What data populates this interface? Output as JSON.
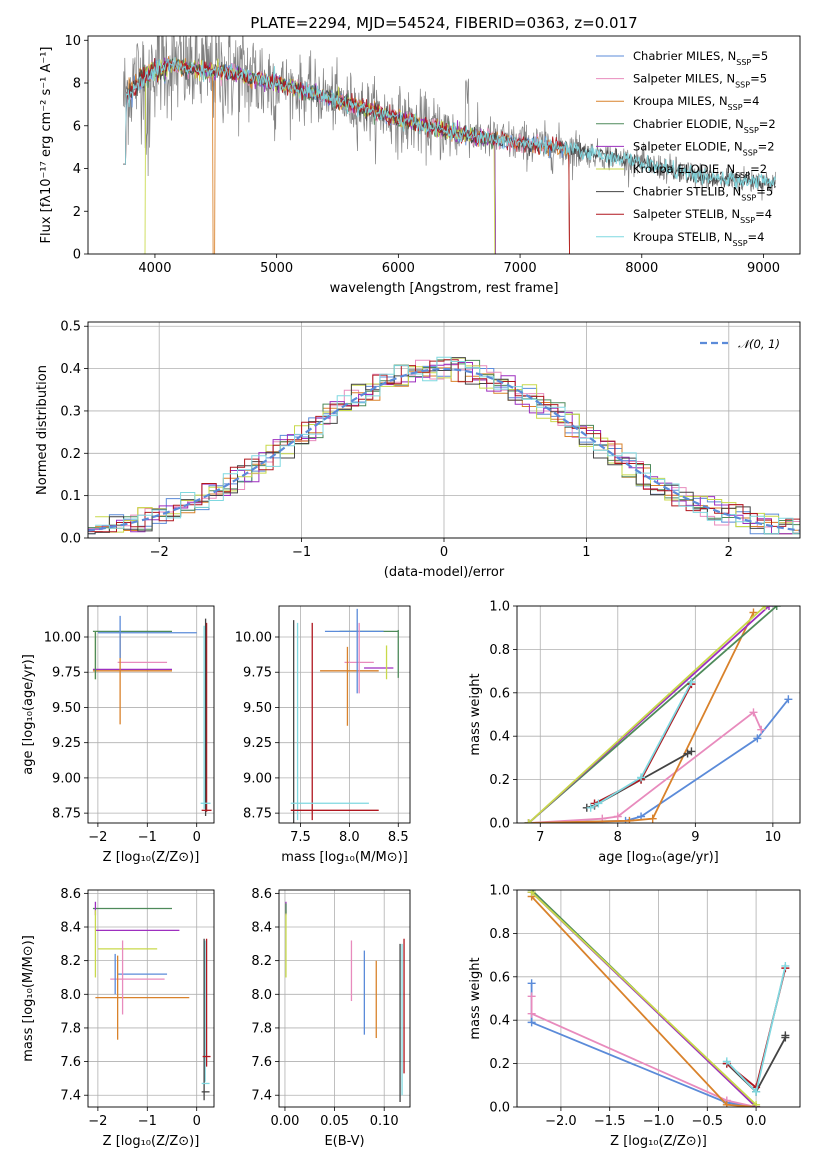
{
  "colors": {
    "Chabrier MILES": "#5b8bd9",
    "Salpeter MILES": "#e88bbd",
    "Kroupa MILES": "#d9822b",
    "Chabrier ELODIE": "#4e8a5a",
    "Salpeter ELODIE": "#9d2fbf",
    "Kroupa ELODIE": "#c8d94a",
    "Chabrier STELIB": "#444444",
    "Salpeter STELIB": "#b0171f",
    "Kroupa STELIB": "#7fd8e0",
    "data": "#808080",
    "gauss": "#5b8bd9"
  },
  "chart_data": [
    {
      "id": "spectrum",
      "type": "line",
      "title": "PLATE=2294, MJD=54524, FIBERID=0363, z=0.017",
      "xlabel": "wavelength [Angstrom, rest frame]",
      "ylabel": "Flux [fλ10⁻¹⁷ erg cm⁻² s⁻¹ A⁻¹]",
      "xlim": [
        3450,
        9300
      ],
      "ylim": [
        0,
        10.2
      ],
      "xticks": [
        4000,
        5000,
        6000,
        7000,
        8000,
        9000
      ],
      "yticks": [
        0,
        2,
        4,
        6,
        8,
        10
      ],
      "grid": false,
      "legend_position": "top-right",
      "continuum": [
        [
          3740,
          7.3
        ],
        [
          3800,
          7.9
        ],
        [
          3900,
          8.5
        ],
        [
          4000,
          8.9
        ],
        [
          4100,
          8.9
        ],
        [
          4200,
          8.75
        ],
        [
          4400,
          8.6
        ],
        [
          4600,
          8.5
        ],
        [
          5000,
          8.0
        ],
        [
          5200,
          7.7
        ],
        [
          5500,
          7.2
        ],
        [
          6000,
          6.3
        ],
        [
          6500,
          5.6
        ],
        [
          7000,
          5.2
        ],
        [
          7400,
          4.9
        ],
        [
          7800,
          4.5
        ],
        [
          8200,
          4.0
        ],
        [
          8600,
          3.5
        ],
        [
          9000,
          3.4
        ],
        [
          9100,
          3.3
        ]
      ],
      "series": [
        {
          "name": "Chabrier MILES",
          "n_ssp": "5",
          "range": [
            3740,
            7410
          ]
        },
        {
          "name": "Salpeter MILES",
          "n_ssp": "5",
          "range": [
            3740,
            7410
          ]
        },
        {
          "name": "Kroupa MILES",
          "n_ssp": "4",
          "range": [
            3740,
            7410
          ]
        },
        {
          "name": "Chabrier ELODIE",
          "n_ssp": "2",
          "range": [
            3900,
            6800
          ]
        },
        {
          "name": "Salpeter ELODIE",
          "n_ssp": "2",
          "range": [
            3900,
            6800
          ]
        },
        {
          "name": "Kroupa ELODIE",
          "n_ssp": "2",
          "range": [
            3900,
            6800
          ]
        },
        {
          "name": "Chabrier STELIB",
          "n_ssp": "5",
          "range": [
            3740,
            9100
          ]
        },
        {
          "name": "Salpeter STELIB",
          "n_ssp": "4",
          "range": [
            3740,
            7410
          ]
        },
        {
          "name": "Kroupa STELIB",
          "n_ssp": "4",
          "range": [
            3740,
            9100
          ]
        }
      ]
    },
    {
      "id": "residuals",
      "type": "line",
      "xlabel": "(data-model)/error",
      "ylabel": "Normed distribution",
      "xlim": [
        -2.5,
        2.5
      ],
      "ylim": [
        0,
        0.51
      ],
      "xticks": [
        -2,
        -1,
        0,
        1,
        2
      ],
      "yticks": [
        0.0,
        0.1,
        0.2,
        0.3,
        0.4,
        0.5
      ],
      "grid": true,
      "legend_position": "top-right",
      "legend_label": "𝒩(0, 1)",
      "bin_width": 0.1
    },
    {
      "id": "age-vs-Z",
      "type": "scatter",
      "xlabel": "Z [log₁₀(Z/Z⊙)]",
      "ylabel": "age  [log₁₀(age/yr)]",
      "xlim": [
        -2.2,
        0.35
      ],
      "ylim": [
        8.68,
        10.22
      ],
      "xticks": [
        -2,
        -1,
        0
      ],
      "yticks": [
        8.75,
        9.0,
        9.25,
        9.5,
        9.75,
        10.0
      ],
      "grid": true,
      "errorbars": [
        {
          "series": "Chabrier MILES",
          "x": -1.0,
          "xerr": 1.0,
          "y": 10.03,
          "yerr": 0.0
        },
        {
          "series": "Chabrier ELODIE",
          "x": -1.3,
          "xerr": 0.8,
          "y": 10.04,
          "yerr": 0.0
        },
        {
          "series": "Kroupa ELODIE",
          "x": -2.05,
          "xerr": 0.0,
          "y": 9.87,
          "yerr": 0.17
        },
        {
          "series": "Salpeter MILES",
          "x": -1.1,
          "xerr": 0.5,
          "y": 9.82,
          "yerr": 0.0
        },
        {
          "series": "Salpeter ELODIE",
          "x": -1.3,
          "xerr": 0.8,
          "y": 9.77,
          "yerr": 0.0
        },
        {
          "series": "Kroupa MILES",
          "x": -1.3,
          "xerr": 0.8,
          "y": 9.76,
          "yerr": 0.0
        },
        {
          "series": "Chabrier ELODIE",
          "x": -2.05,
          "xerr": 0.0,
          "y": 9.87,
          "yerr": 0.17
        },
        {
          "series": "Kroupa MILES",
          "x": -1.55,
          "xerr": 0.0,
          "y": 9.7,
          "yerr": 0.32
        },
        {
          "series": "Chabrier MILES",
          "x": -1.55,
          "xerr": 0.0,
          "y": 10.0,
          "yerr": 0.15
        },
        {
          "series": "Salpeter STELIB",
          "x": 0.2,
          "xerr": 0.0,
          "y": 9.43,
          "yerr": 0.67
        },
        {
          "series": "Kroupa STELIB",
          "x": 0.15,
          "xerr": 0.0,
          "y": 9.43,
          "yerr": 0.65
        },
        {
          "series": "Chabrier STELIB",
          "x": 0.18,
          "xerr": 0.0,
          "y": 9.43,
          "yerr": 0.7
        },
        {
          "series": "Salpeter STELIB",
          "x": 0.2,
          "xerr": 0.1,
          "y": 8.77,
          "yerr": 0.0
        },
        {
          "series": "Kroupa STELIB",
          "x": 0.18,
          "xerr": 0.1,
          "y": 8.82,
          "yerr": 0.0
        }
      ]
    },
    {
      "id": "age-vs-mass",
      "type": "scatter",
      "xlabel": "mass [log₁₀(M/M⊙)]",
      "xlim": [
        7.28,
        8.62
      ],
      "ylim": [
        8.68,
        10.22
      ],
      "xticks": [
        7.5,
        8.0,
        8.5
      ],
      "yticks": [
        8.75,
        9.0,
        9.25,
        9.5,
        9.75,
        10.0
      ],
      "grid": true,
      "errorbars": [
        {
          "series": "Chabrier ELODIE",
          "x": 8.2,
          "xerr": 0.3,
          "y": 10.04,
          "yerr": 0.0
        },
        {
          "series": "Chabrier ELODIE",
          "x": 8.5,
          "xerr": 0.0,
          "y": 9.88,
          "yerr": 0.17
        },
        {
          "series": "Chabrier MILES",
          "x": 8.05,
          "xerr": 0.3,
          "y": 10.04,
          "yerr": 0.0
        },
        {
          "series": "Salpeter MILES",
          "x": 8.1,
          "xerr": 0.15,
          "y": 9.82,
          "yerr": 0.0
        },
        {
          "series": "Salpeter ELODIE",
          "x": 8.3,
          "xerr": 0.15,
          "y": 9.78,
          "yerr": 0.0
        },
        {
          "series": "Kroupa MILES",
          "x": 8.0,
          "xerr": 0.3,
          "y": 9.76,
          "yerr": 0.0
        },
        {
          "series": "Kroupa ELODIE",
          "x": 8.38,
          "xerr": 0.0,
          "y": 9.82,
          "yerr": 0.12
        },
        {
          "series": "Kroupa MILES",
          "x": 7.98,
          "xerr": 0.0,
          "y": 9.65,
          "yerr": 0.28
        },
        {
          "series": "Salpeter MILES",
          "x": 8.1,
          "xerr": 0.0,
          "y": 9.85,
          "yerr": 0.25
        },
        {
          "series": "Chabrier MILES",
          "x": 8.08,
          "xerr": 0.0,
          "y": 9.9,
          "yerr": 0.3
        },
        {
          "series": "Chabrier STELIB",
          "x": 7.43,
          "xerr": 0.0,
          "y": 9.4,
          "yerr": 0.72
        },
        {
          "series": "Kroupa STELIB",
          "x": 7.47,
          "xerr": 0.0,
          "y": 9.4,
          "yerr": 0.7
        },
        {
          "series": "Salpeter STELIB",
          "x": 7.62,
          "xerr": 0.0,
          "y": 9.4,
          "yerr": 0.7
        },
        {
          "series": "Kroupa STELIB",
          "x": 7.8,
          "xerr": 0.4,
          "y": 8.82,
          "yerr": 0.0
        },
        {
          "series": "Salpeter STELIB",
          "x": 7.85,
          "xerr": 0.45,
          "y": 8.77,
          "yerr": 0.0
        }
      ]
    },
    {
      "id": "weight-vs-age",
      "type": "line",
      "xlabel": "age  [log₁₀(age/yr)]",
      "ylabel": "mass weight",
      "xlim": [
        6.7,
        10.35
      ],
      "ylim": [
        0,
        1.0
      ],
      "xticks": [
        7,
        8,
        9,
        10
      ],
      "yticks": [
        0.0,
        0.2,
        0.4,
        0.6,
        0.8,
        1.0
      ],
      "grid": true,
      "series": [
        {
          "name": "Chabrier MILES",
          "x": [
            6.85,
            8.1,
            8.3,
            9.8,
            10.2
          ],
          "y": [
            0.0,
            0.01,
            0.03,
            0.39,
            0.57
          ]
        },
        {
          "name": "Salpeter MILES",
          "x": [
            6.85,
            7.8,
            8.0,
            9.75,
            9.85
          ],
          "y": [
            0.0,
            0.02,
            0.03,
            0.51,
            0.43
          ]
        },
        {
          "name": "Kroupa MILES",
          "x": [
            6.85,
            8.15,
            8.45,
            9.75
          ],
          "y": [
            0.0,
            0.01,
            0.02,
            0.97
          ]
        },
        {
          "name": "Chabrier ELODIE",
          "x": [
            6.85,
            10.05
          ],
          "y": [
            0.0,
            1.0
          ]
        },
        {
          "name": "Salpeter ELODIE",
          "x": [
            6.85,
            9.95
          ],
          "y": [
            0.0,
            1.0
          ]
        },
        {
          "name": "Kroupa ELODIE",
          "x": [
            6.85,
            9.9
          ],
          "y": [
            0.0,
            1.0
          ]
        },
        {
          "name": "Chabrier STELIB",
          "x": [
            7.6,
            7.7,
            8.3,
            8.9,
            8.95
          ],
          "y": [
            0.07,
            0.08,
            0.2,
            0.32,
            0.33
          ]
        },
        {
          "name": "Salpeter STELIB",
          "x": [
            7.7,
            8.3,
            8.95
          ],
          "y": [
            0.09,
            0.2,
            0.64
          ]
        },
        {
          "name": "Kroupa STELIB",
          "x": [
            7.65,
            7.75,
            8.3,
            8.95
          ],
          "y": [
            0.07,
            0.09,
            0.21,
            0.65
          ]
        }
      ]
    },
    {
      "id": "mass-vs-Z",
      "type": "scatter",
      "xlabel": "Z [log₁₀(Z/Z⊙)]",
      "ylabel": "mass [log₁₀(M/M⊙)]",
      "xlim": [
        -2.2,
        0.35
      ],
      "ylim": [
        7.33,
        8.62
      ],
      "xticks": [
        -2,
        -1,
        0
      ],
      "yticks": [
        7.4,
        7.6,
        7.8,
        8.0,
        8.2,
        8.4,
        8.6
      ],
      "grid": true,
      "errorbars": [
        {
          "series": "Chabrier ELODIE",
          "x": -1.3,
          "xerr": 0.8,
          "y": 8.51,
          "yerr": 0.0
        },
        {
          "series": "Salpeter ELODIE",
          "x": -2.05,
          "xerr": 0.0,
          "y": 8.51,
          "yerr": 0.04
        },
        {
          "series": "Salpeter ELODIE",
          "x": -1.2,
          "xerr": 0.85,
          "y": 8.38,
          "yerr": 0.0
        },
        {
          "series": "Kroupa ELODIE",
          "x": -2.05,
          "xerr": 0.0,
          "y": 8.3,
          "yerr": 0.2
        },
        {
          "series": "Kroupa ELODIE",
          "x": -1.4,
          "xerr": 0.6,
          "y": 8.27,
          "yerr": 0.0
        },
        {
          "series": "Chabrier MILES",
          "x": -1.1,
          "xerr": 0.5,
          "y": 8.12,
          "yerr": 0.0
        },
        {
          "series": "Salpeter MILES",
          "x": -1.2,
          "xerr": 0.55,
          "y": 8.09,
          "yerr": 0.0
        },
        {
          "series": "Kroupa MILES",
          "x": -1.1,
          "xerr": 0.95,
          "y": 7.98,
          "yerr": 0.0
        },
        {
          "series": "Kroupa MILES",
          "x": -1.6,
          "xerr": 0.0,
          "y": 7.98,
          "yerr": 0.25
        },
        {
          "series": "Salpeter MILES",
          "x": -1.5,
          "xerr": 0.0,
          "y": 8.1,
          "yerr": 0.22
        },
        {
          "series": "Chabrier MILES",
          "x": -1.65,
          "xerr": 0.0,
          "y": 8.12,
          "yerr": 0.12
        },
        {
          "series": "Salpeter STELIB",
          "x": 0.2,
          "xerr": 0.0,
          "y": 7.95,
          "yerr": 0.38
        },
        {
          "series": "Kroupa STELIB",
          "x": 0.17,
          "xerr": 0.0,
          "y": 7.9,
          "yerr": 0.42
        },
        {
          "series": "Chabrier STELIB",
          "x": 0.15,
          "xerr": 0.0,
          "y": 7.85,
          "yerr": 0.48
        },
        {
          "series": "Salpeter STELIB",
          "x": 0.2,
          "xerr": 0.08,
          "y": 7.63,
          "yerr": 0.0
        },
        {
          "series": "Kroupa STELIB",
          "x": 0.18,
          "xerr": 0.08,
          "y": 7.47,
          "yerr": 0.0
        },
        {
          "series": "Chabrier STELIB",
          "x": 0.18,
          "xerr": 0.08,
          "y": 7.42,
          "yerr": 0.0
        }
      ]
    },
    {
      "id": "mass-vs-ebv",
      "type": "scatter",
      "xlabel": "E(B-V)",
      "xlim": [
        -0.006,
        0.126
      ],
      "ylim": [
        7.33,
        8.62
      ],
      "xticks": [
        0.0,
        0.05,
        0.1
      ],
      "yticks": [
        7.4,
        7.6,
        7.8,
        8.0,
        8.2,
        8.4,
        8.6
      ],
      "grid": true,
      "errorbars": [
        {
          "series": "Salpeter ELODIE",
          "x": 0.001,
          "xerr": 0.0,
          "y": 8.51,
          "yerr": 0.04
        },
        {
          "series": "Kroupa ELODIE",
          "x": 0.001,
          "xerr": 0.0,
          "y": 8.3,
          "yerr": 0.2
        },
        {
          "series": "Chabrier ELODIE",
          "x": 0.001,
          "xerr": 0.0,
          "y": 8.51,
          "yerr": 0.03
        },
        {
          "series": "Salpeter MILES",
          "x": 0.067,
          "xerr": 0.0,
          "y": 8.14,
          "yerr": 0.18
        },
        {
          "series": "Chabrier MILES",
          "x": 0.08,
          "xerr": 0.0,
          "y": 8.01,
          "yerr": 0.25
        },
        {
          "series": "Kroupa MILES",
          "x": 0.092,
          "xerr": 0.0,
          "y": 7.97,
          "yerr": 0.23
        },
        {
          "series": "Chabrier STELIB",
          "x": 0.116,
          "xerr": 0.0,
          "y": 7.83,
          "yerr": 0.47
        },
        {
          "series": "Kroupa STELIB",
          "x": 0.118,
          "xerr": 0.0,
          "y": 7.85,
          "yerr": 0.45
        },
        {
          "series": "Salpeter STELIB",
          "x": 0.12,
          "xerr": 0.0,
          "y": 7.93,
          "yerr": 0.4
        }
      ]
    },
    {
      "id": "weight-vs-Z",
      "type": "line",
      "xlabel": "Z [log₁₀(Z/Z⊙)]",
      "ylabel": "mass weight",
      "xlim": [
        -2.45,
        0.45
      ],
      "ylim": [
        0,
        1.0
      ],
      "xticks": [
        -2.0,
        -1.5,
        -1.0,
        -0.5,
        0.0
      ],
      "yticks": [
        0.0,
        0.2,
        0.4,
        0.6,
        0.8,
        1.0
      ],
      "grid": true,
      "series": [
        {
          "name": "Chabrier MILES",
          "x": [
            -2.3,
            -2.3,
            -0.3,
            0.0
          ],
          "y": [
            0.57,
            0.39,
            0.02,
            0.0
          ]
        },
        {
          "name": "Salpeter MILES",
          "x": [
            -2.3,
            -2.3,
            -0.3,
            0.0
          ],
          "y": [
            0.51,
            0.43,
            0.03,
            0.0
          ]
        },
        {
          "name": "Kroupa MILES",
          "x": [
            -2.3,
            -0.3,
            0.0
          ],
          "y": [
            0.97,
            0.01,
            0.0
          ]
        },
        {
          "name": "Chabrier ELODIE",
          "x": [
            -2.3,
            0.0
          ],
          "y": [
            1.0,
            0.0
          ]
        },
        {
          "name": "Salpeter ELODIE",
          "x": [
            -2.3,
            0.0
          ],
          "y": [
            0.99,
            0.0
          ]
        },
        {
          "name": "Kroupa ELODIE",
          "x": [
            -2.3,
            0.0
          ],
          "y": [
            0.99,
            0.01
          ]
        },
        {
          "name": "Chabrier STELIB",
          "x": [
            -0.3,
            0.0,
            0.3,
            0.3
          ],
          "y": [
            0.2,
            0.07,
            0.32,
            0.33
          ]
        },
        {
          "name": "Salpeter STELIB",
          "x": [
            -0.3,
            0.0,
            0.3
          ],
          "y": [
            0.2,
            0.09,
            0.64
          ]
        },
        {
          "name": "Kroupa STELIB",
          "x": [
            -0.3,
            0.0,
            0.3
          ],
          "y": [
            0.21,
            0.07,
            0.65
          ]
        }
      ]
    }
  ]
}
